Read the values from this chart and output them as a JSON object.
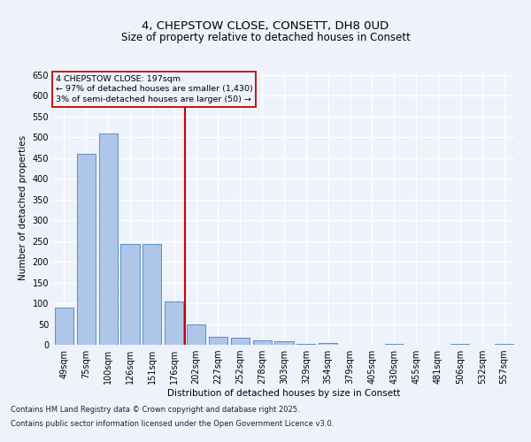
{
  "title": "4, CHEPSTOW CLOSE, CONSETT, DH8 0UD",
  "subtitle": "Size of property relative to detached houses in Consett",
  "xlabel": "Distribution of detached houses by size in Consett",
  "ylabel": "Number of detached properties",
  "bar_labels": [
    "49sqm",
    "75sqm",
    "100sqm",
    "126sqm",
    "151sqm",
    "176sqm",
    "202sqm",
    "227sqm",
    "252sqm",
    "278sqm",
    "303sqm",
    "329sqm",
    "354sqm",
    "379sqm",
    "405sqm",
    "430sqm",
    "455sqm",
    "481sqm",
    "506sqm",
    "532sqm",
    "557sqm"
  ],
  "bar_values": [
    90,
    460,
    508,
    243,
    243,
    104,
    50,
    20,
    18,
    11,
    8,
    2,
    5,
    0,
    0,
    3,
    0,
    0,
    3,
    0,
    3
  ],
  "bar_color": "#aec6e8",
  "bar_edge_color": "#5b8fc7",
  "vline_color": "#cc0000",
  "annotation_box_color": "#cc0000",
  "annotation_title": "4 CHEPSTOW CLOSE: 197sqm",
  "annotation_line1": "← 97% of detached houses are smaller (1,430)",
  "annotation_line2": "3% of semi-detached houses are larger (50) →",
  "background_color": "#eef2fb",
  "grid_color": "#ffffff",
  "footer_line1": "Contains HM Land Registry data © Crown copyright and database right 2025.",
  "footer_line2": "Contains public sector information licensed under the Open Government Licence v3.0.",
  "ylim": [
    0,
    660
  ],
  "yticks": [
    0,
    50,
    100,
    150,
    200,
    250,
    300,
    350,
    400,
    450,
    500,
    550,
    600,
    650
  ],
  "title_fontsize": 9.5,
  "subtitle_fontsize": 8.5,
  "axis_label_fontsize": 7.5,
  "tick_fontsize": 7.0,
  "annotation_fontsize": 6.8,
  "footer_fontsize": 6.0
}
